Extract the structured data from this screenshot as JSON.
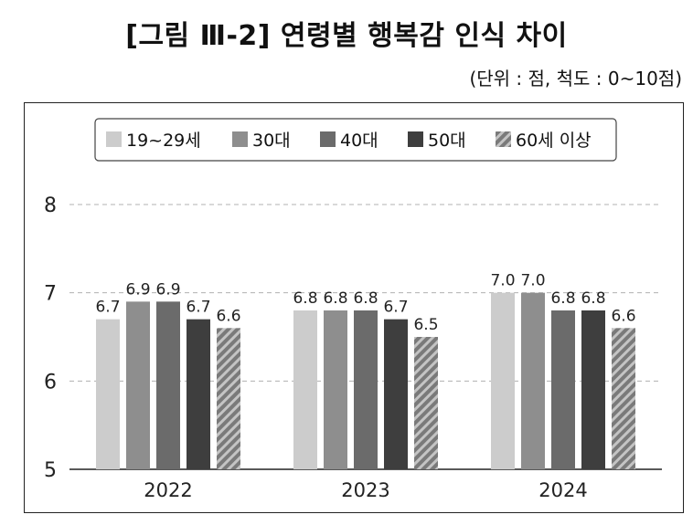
{
  "header": {
    "title": "[그림 Ⅲ-2] 연령별 행복감 인식 차이",
    "unit": "(단위 : 점, 척도 : 0~10점)"
  },
  "colors": {
    "19~29세": "#cccccc",
    "30대": "#8e8e8e",
    "40대": "#6b6b6b",
    "50대": "#3e3e3e",
    "60세 이상": "#9a9a9a"
  },
  "chart_data": {
    "type": "bar",
    "categories": [
      "2022",
      "2023",
      "2024"
    ],
    "series": [
      {
        "name": "19~29세",
        "values": [
          6.7,
          6.8,
          7.0
        ],
        "labels": [
          "6.7",
          "6.8",
          "7.0"
        ]
      },
      {
        "name": "30대",
        "values": [
          6.9,
          6.8,
          7.0
        ],
        "labels": [
          "6.9",
          "6.8",
          "7.0"
        ]
      },
      {
        "name": "40대",
        "values": [
          6.9,
          6.8,
          6.8
        ],
        "labels": [
          "6.9",
          "6.8",
          "6.8"
        ]
      },
      {
        "name": "50대",
        "values": [
          6.7,
          6.7,
          6.8
        ],
        "labels": [
          "6.7",
          "6.7",
          "6.8"
        ]
      },
      {
        "name": "60세 이상",
        "values": [
          6.6,
          6.5,
          6.6
        ],
        "labels": [
          "6.6",
          "6.5",
          "6.6"
        ],
        "pattern": "diagonal-hatch"
      }
    ],
    "ylim": [
      5,
      8
    ],
    "yticks": [
      "5",
      "6",
      "7",
      "8"
    ],
    "grid": "dashed horizontal",
    "legend": "top-center"
  }
}
